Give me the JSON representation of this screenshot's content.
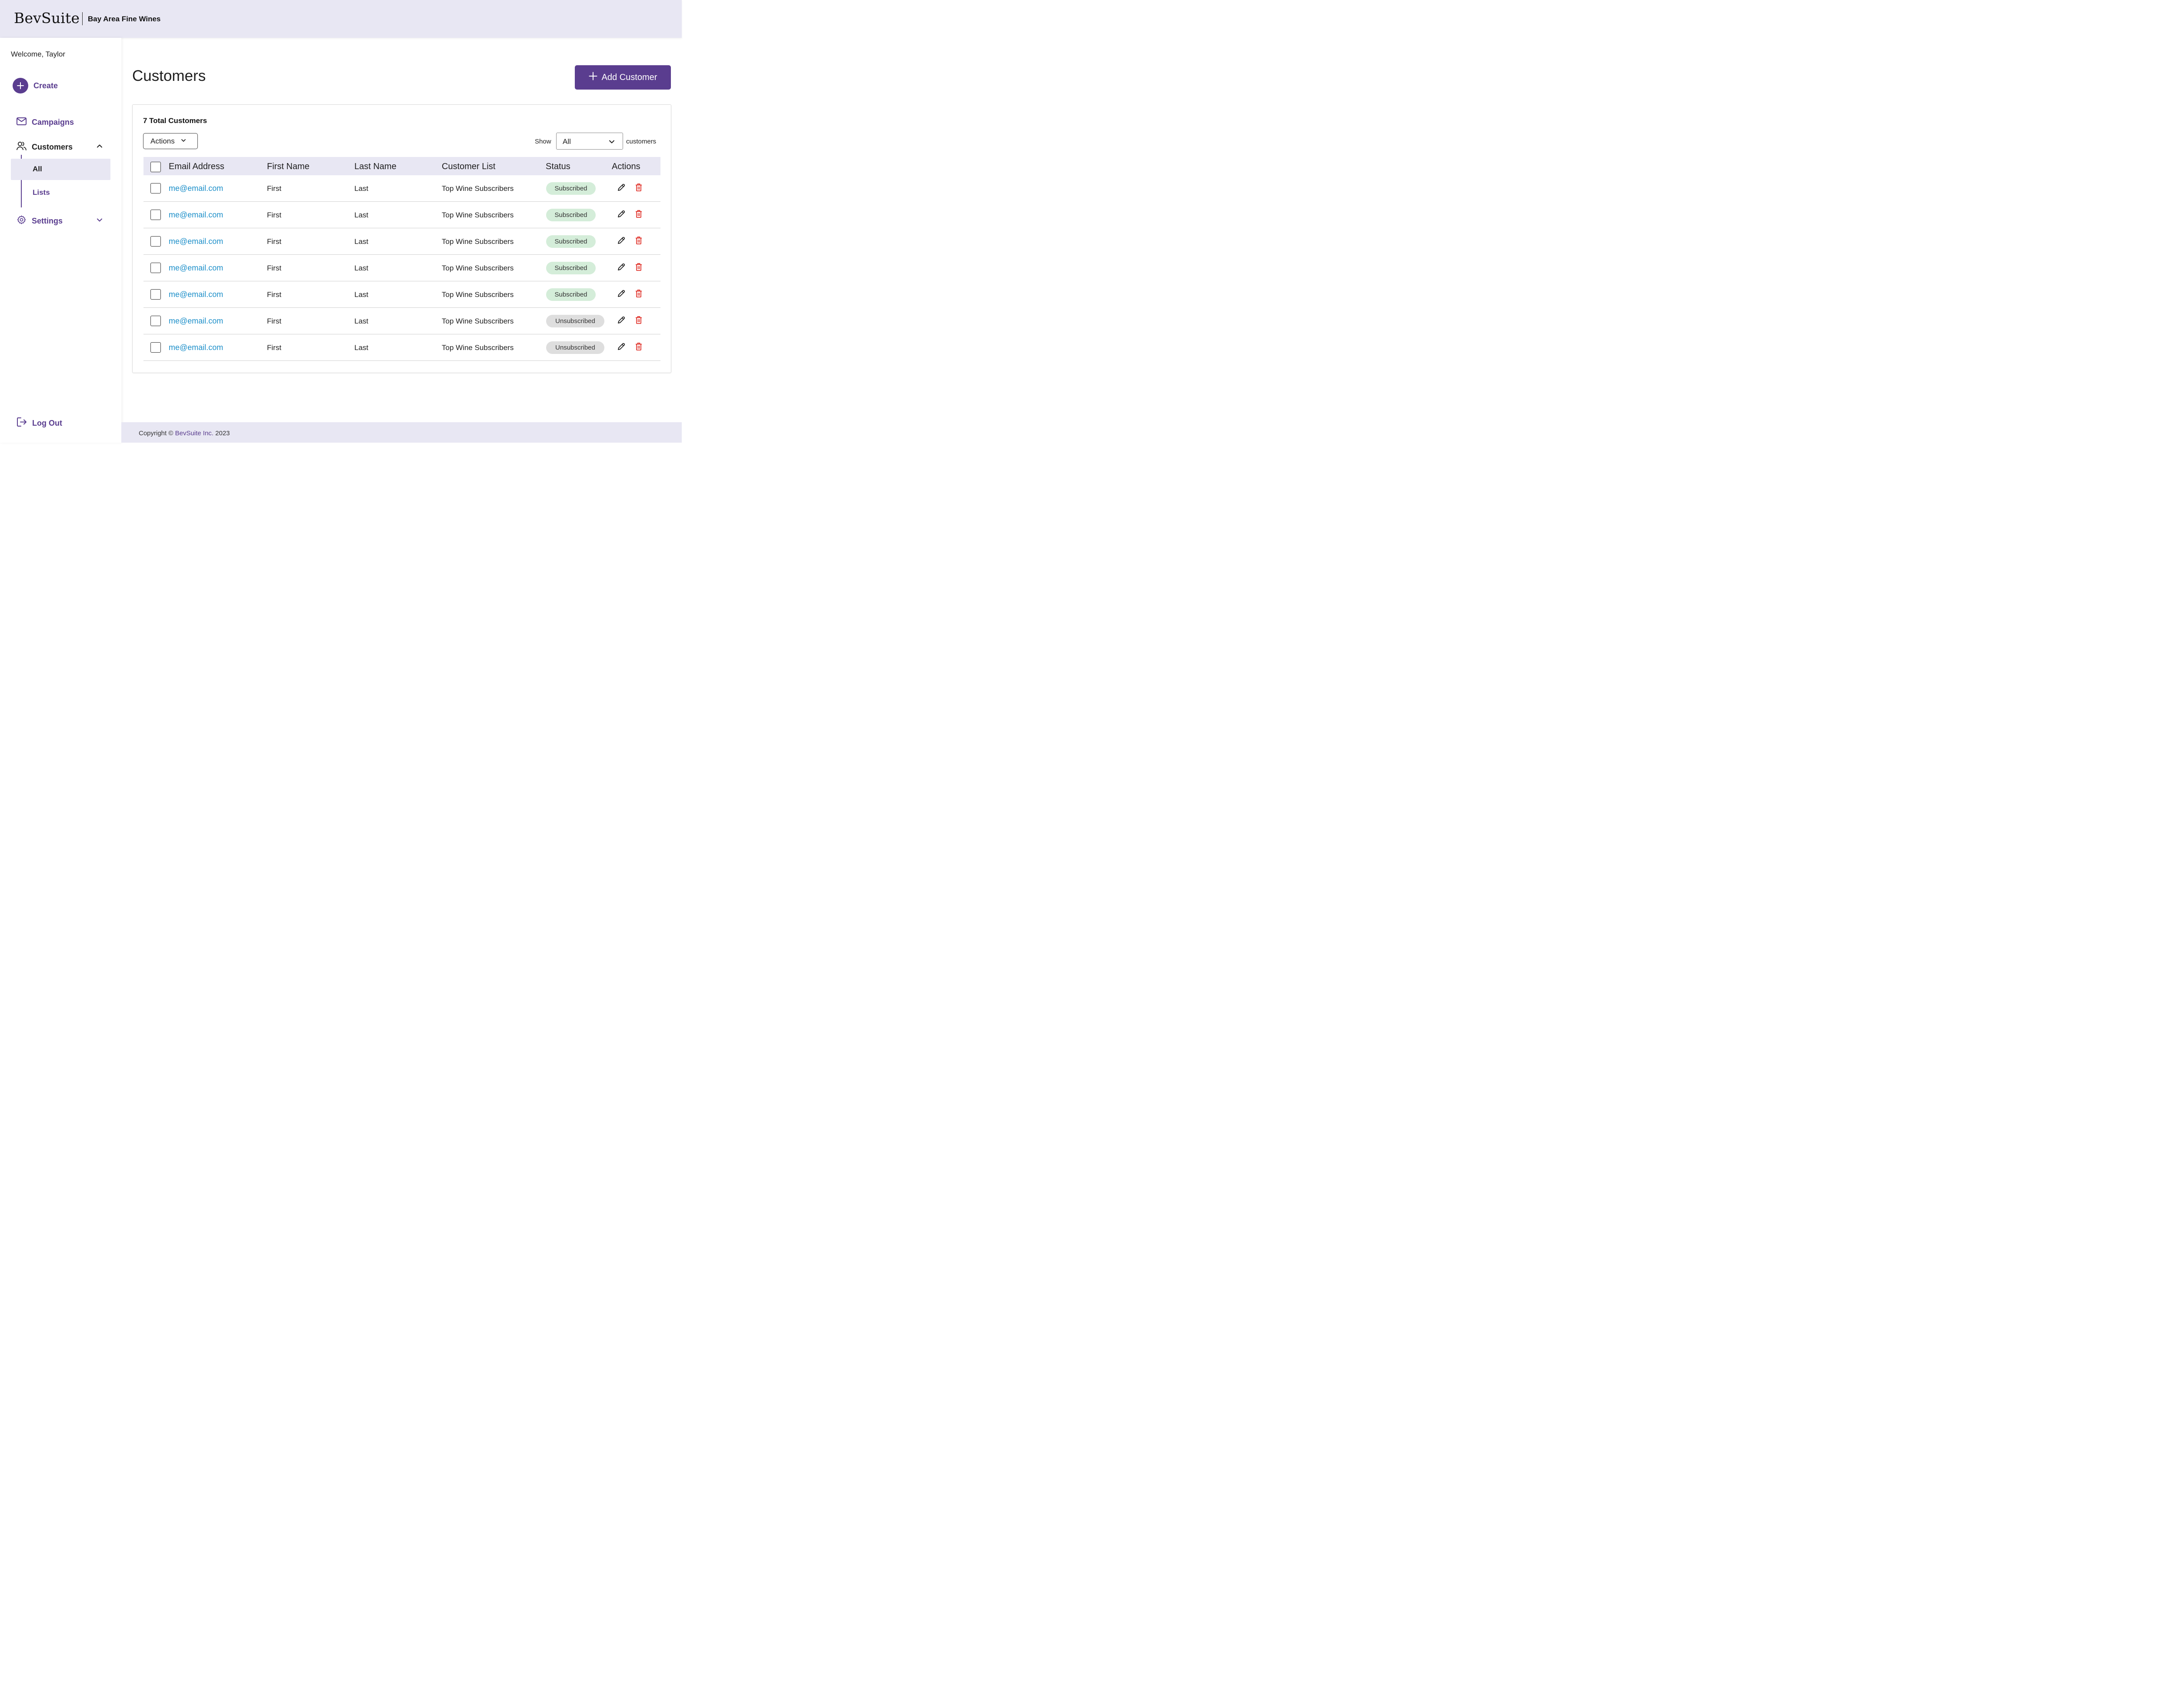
{
  "header": {
    "brand": "BevSuite",
    "company": "Bay Area Fine Wines"
  },
  "sidebar": {
    "welcome": "Welcome, Taylor",
    "create_label": "Create",
    "items": [
      {
        "label": "Campaigns",
        "icon": "mail-icon"
      },
      {
        "label": "Customers",
        "icon": "users-icon",
        "expanded": true
      },
      {
        "label": "Settings",
        "icon": "gear-icon",
        "expanded": false
      }
    ],
    "customers_sub": [
      {
        "label": "All",
        "active": true
      },
      {
        "label": "Lists",
        "active": false
      }
    ],
    "logout_label": "Log Out"
  },
  "main": {
    "title": "Customers",
    "add_button": "Add Customer",
    "total": "7 Total Customers",
    "actions_label": "Actions",
    "show_label": "Show",
    "show_value": "All",
    "show_suffix": "customers"
  },
  "table": {
    "headers": [
      "Email Address",
      "First Name",
      "Last Name",
      "Customer List",
      "Status",
      "Actions"
    ],
    "rows": [
      {
        "email": "me@email.com",
        "first": "First",
        "last": "Last",
        "list": "Top Wine Subscribers",
        "status": "Subscribed"
      },
      {
        "email": "me@email.com",
        "first": "First",
        "last": "Last",
        "list": "Top Wine Subscribers",
        "status": "Subscribed"
      },
      {
        "email": "me@email.com",
        "first": "First",
        "last": "Last",
        "list": "Top Wine Subscribers",
        "status": "Subscribed"
      },
      {
        "email": "me@email.com",
        "first": "First",
        "last": "Last",
        "list": "Top Wine Subscribers",
        "status": "Subscribed"
      },
      {
        "email": "me@email.com",
        "first": "First",
        "last": "Last",
        "list": "Top Wine Subscribers",
        "status": "Subscribed"
      },
      {
        "email": "me@email.com",
        "first": "First",
        "last": "Last",
        "list": "Top Wine Subscribers",
        "status": "Unsubscribed"
      },
      {
        "email": "me@email.com",
        "first": "First",
        "last": "Last",
        "list": "Top Wine Subscribers",
        "status": "Unsubscribed"
      }
    ]
  },
  "footer": {
    "prefix": "Copyright ©",
    "brand": "BevSuite Inc.",
    "year": "2023"
  },
  "colors": {
    "accent": "#5a3d8f",
    "header_bg": "#e8e7f3",
    "link": "#1d8fc9",
    "subscribed_bg": "#d4edd9",
    "unsubscribed_bg": "#dedede",
    "delete": "#e0332b"
  }
}
